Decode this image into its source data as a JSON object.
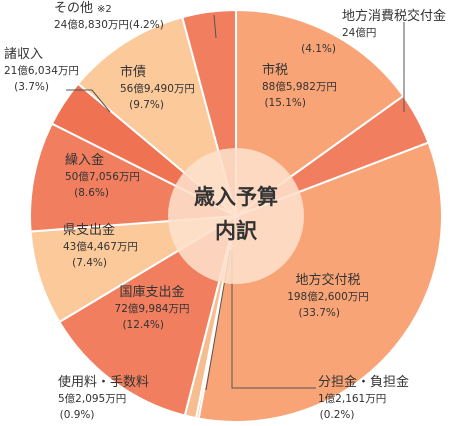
{
  "chart_data": {
    "type": "pie",
    "title": "歳入予算内訳",
    "title_lines": [
      "歳入予算",
      "内訳"
    ],
    "direction": "clockwise",
    "start": "12 o'clock",
    "slices": [
      {
        "name": "市税",
        "amount": "88億5,982万円",
        "percent_label": "(15.1%)",
        "value": 15.1,
        "color": "#f8a476"
      },
      {
        "name": "地方消費税交付金",
        "amount": "24億円",
        "percent_label": "(4.1%)",
        "value": 4.1,
        "color": "#f07e5f"
      },
      {
        "name": "地方交付税",
        "amount": "198億2,600万円",
        "percent_label": "(33.7%)",
        "value": 33.7,
        "color": "#f8a476"
      },
      {
        "name": "分担金・負担金",
        "amount": "1億2,161万円",
        "percent_label": "(0.2%)",
        "value": 0.2,
        "color": "#f8a476"
      },
      {
        "name": "使用料・手数料",
        "amount": "5億2,095万円",
        "percent_label": "(0.9%)",
        "value": 0.9,
        "color": "#f6bd91"
      },
      {
        "name": "国庫支出金",
        "amount": "72億9,984万円",
        "percent_label": "(12.4%)",
        "value": 12.4,
        "color": "#f07e5f"
      },
      {
        "name": "県支出金",
        "amount": "43億4,467万円",
        "percent_label": "(7.4%)",
        "value": 7.4,
        "color": "#fbc99a"
      },
      {
        "name": "繰入金",
        "amount": "50億7,056万円",
        "percent_label": "(8.6%)",
        "value": 8.6,
        "color": "#f07e5f"
      },
      {
        "name": "諸収入",
        "amount": "21億6,034万円",
        "percent_label": "(3.7%)",
        "value": 3.7,
        "color": "#ef7352"
      },
      {
        "name": "市債",
        "amount": "56億9,490万円",
        "percent_label": "(9.7%)",
        "value": 9.7,
        "color": "#fbc99a"
      },
      {
        "name": "その他",
        "note": "※2",
        "amount": "24億8,830万円(4.2%)",
        "percent_label": "",
        "value": 4.2,
        "color": "#f07e5f"
      }
    ]
  }
}
